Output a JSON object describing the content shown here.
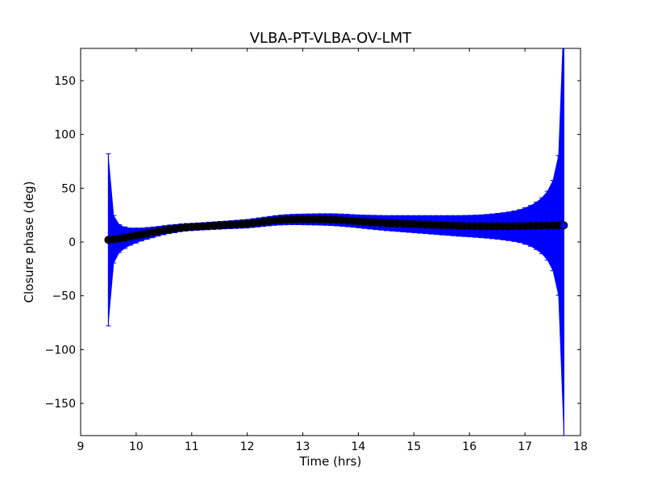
{
  "chart_data": {
    "type": "scatter",
    "title": "VLBA-PT-VLBA-OV-LMT",
    "xlabel": "Time (hrs)",
    "ylabel": "Closure phase (deg)",
    "xlim": [
      9,
      18
    ],
    "ylim": [
      -180,
      180
    ],
    "xticks": [
      9,
      10,
      11,
      12,
      13,
      14,
      15,
      16,
      17,
      18
    ],
    "yticks": [
      -150,
      -100,
      -50,
      0,
      50,
      100,
      150
    ],
    "ytick_labels": [
      "−150",
      "−100",
      "−50",
      "0",
      "50",
      "100",
      "150"
    ],
    "grid": false,
    "marker_color": "#000000",
    "errorbar_color": "#0000ff",
    "points": [
      [
        9.5,
        2.0,
        80
      ],
      [
        9.6,
        2.5,
        22
      ],
      [
        9.7,
        3.2,
        13
      ],
      [
        9.8,
        4.0,
        10
      ],
      [
        9.9,
        5.0,
        8
      ],
      [
        10.0,
        6.0,
        7
      ],
      [
        10.1,
        7.0,
        6
      ],
      [
        10.2,
        8.0,
        5.5
      ],
      [
        10.3,
        9.0,
        5
      ],
      [
        10.4,
        10.0,
        4.5
      ],
      [
        10.5,
        11.0,
        4.2
      ],
      [
        10.6,
        11.8,
        4
      ],
      [
        10.7,
        12.5,
        3.8
      ],
      [
        10.8,
        13.2,
        3.6
      ],
      [
        10.9,
        13.7,
        3.5
      ],
      [
        11.0,
        14.0,
        3.4
      ],
      [
        11.1,
        14.3,
        3.4
      ],
      [
        11.2,
        14.6,
        3.4
      ],
      [
        11.3,
        14.9,
        3.5
      ],
      [
        11.4,
        15.2,
        3.5
      ],
      [
        11.5,
        15.5,
        3.6
      ],
      [
        11.6,
        15.8,
        3.6
      ],
      [
        11.7,
        16.1,
        3.7
      ],
      [
        11.8,
        16.4,
        3.8
      ],
      [
        11.9,
        16.7,
        3.9
      ],
      [
        12.0,
        17.0,
        4
      ],
      [
        12.1,
        17.6,
        4.1
      ],
      [
        12.2,
        18.2,
        4.2
      ],
      [
        12.3,
        18.8,
        4.3
      ],
      [
        12.4,
        19.4,
        4.4
      ],
      [
        12.5,
        20.0,
        4.5
      ],
      [
        12.6,
        20.4,
        4.6
      ],
      [
        12.7,
        20.7,
        4.7
      ],
      [
        12.8,
        20.9,
        4.8
      ],
      [
        12.9,
        21.0,
        4.9
      ],
      [
        13.0,
        21.0,
        5
      ],
      [
        13.1,
        21.0,
        5.1
      ],
      [
        13.2,
        21.0,
        5.2
      ],
      [
        13.3,
        21.0,
        5.3
      ],
      [
        13.4,
        20.9,
        5.4
      ],
      [
        13.5,
        20.8,
        5.5
      ],
      [
        13.6,
        20.6,
        5.6
      ],
      [
        13.7,
        20.3,
        5.7
      ],
      [
        13.8,
        20.0,
        5.8
      ],
      [
        13.9,
        19.6,
        5.9
      ],
      [
        14.0,
        19.2,
        6
      ],
      [
        14.1,
        18.8,
        6.2
      ],
      [
        14.2,
        18.5,
        6.4
      ],
      [
        14.3,
        18.2,
        6.6
      ],
      [
        14.4,
        17.9,
        6.8
      ],
      [
        14.5,
        17.6,
        7
      ],
      [
        14.6,
        17.4,
        7.2
      ],
      [
        14.7,
        17.2,
        7.4
      ],
      [
        14.8,
        17.0,
        7.6
      ],
      [
        14.9,
        16.8,
        7.8
      ],
      [
        15.0,
        16.6,
        8
      ],
      [
        15.1,
        16.4,
        8.2
      ],
      [
        15.2,
        16.2,
        8.4
      ],
      [
        15.3,
        16.0,
        8.6
      ],
      [
        15.4,
        15.8,
        8.8
      ],
      [
        15.5,
        15.6,
        9
      ],
      [
        15.6,
        15.4,
        9.2
      ],
      [
        15.7,
        15.2,
        9.4
      ],
      [
        15.8,
        15.0,
        9.6
      ],
      [
        15.9,
        14.9,
        9.8
      ],
      [
        16.0,
        14.8,
        10
      ],
      [
        16.1,
        14.7,
        10.3
      ],
      [
        16.2,
        14.6,
        10.6
      ],
      [
        16.3,
        14.6,
        11
      ],
      [
        16.4,
        14.6,
        11.5
      ],
      [
        16.5,
        14.6,
        12
      ],
      [
        16.6,
        14.6,
        12.6
      ],
      [
        16.7,
        14.6,
        13.3
      ],
      [
        16.8,
        14.7,
        14.2
      ],
      [
        16.9,
        14.8,
        15.3
      ],
      [
        17.0,
        14.9,
        17
      ],
      [
        17.1,
        15.0,
        19
      ],
      [
        17.2,
        15.0,
        22
      ],
      [
        17.3,
        15.1,
        26
      ],
      [
        17.4,
        15.2,
        32
      ],
      [
        17.5,
        15.3,
        42
      ],
      [
        17.6,
        15.4,
        65
      ],
      [
        17.7,
        15.5,
        200
      ]
    ],
    "point_fields": [
      "time_hrs",
      "closure_phase_deg",
      "error_deg"
    ]
  }
}
